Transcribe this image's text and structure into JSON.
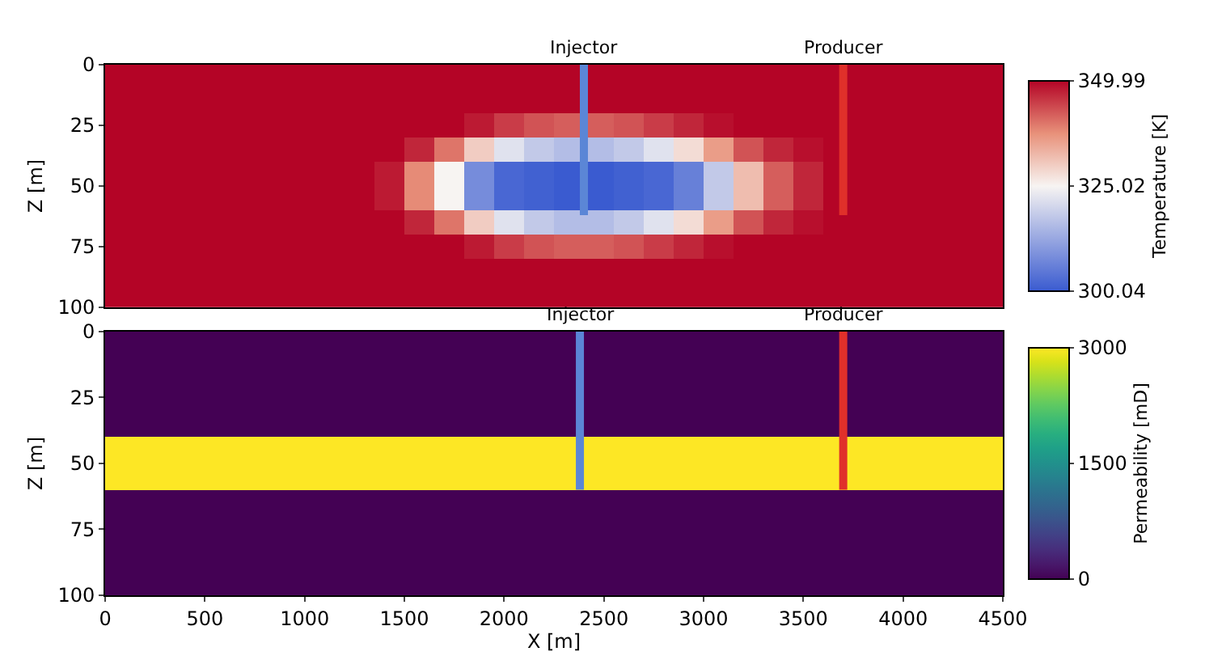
{
  "chart_data": [
    {
      "type": "heatmap",
      "ylabel": "Z [m]",
      "clabel": "Temperature [K]",
      "xlim": [
        0,
        4500
      ],
      "ylim": [
        100,
        0
      ],
      "yticks": [
        0,
        25,
        50,
        75,
        100
      ],
      "tick_labels": "y",
      "clim": [
        300.04,
        349.99
      ],
      "cticks": [
        300.04,
        325.02,
        349.99
      ],
      "x": [
        75,
        225,
        375,
        525,
        675,
        825,
        975,
        1125,
        1275,
        1425,
        1575,
        1725,
        1875,
        2025,
        2175,
        2325,
        2475,
        2625,
        2775,
        2925,
        3075,
        3225,
        3375,
        3525,
        3675,
        3825,
        3975,
        4125,
        4275,
        4425
      ],
      "y": [
        5,
        15,
        25,
        35,
        45,
        55,
        65,
        75,
        85,
        95
      ],
      "cells": [
        [
          349.99,
          349.99,
          349.99,
          349.99,
          349.99,
          349.99,
          349.99,
          349.99,
          349.99,
          349.99,
          349.99,
          349.99,
          349.99,
          349.99,
          349.99,
          349.99,
          349.99,
          349.99,
          349.99,
          349.99,
          349.99,
          349.99,
          349.99,
          349.99,
          349.99,
          349.99,
          349.99,
          349.99,
          349.99,
          349.99
        ],
        [
          349.99,
          349.99,
          349.99,
          349.99,
          349.99,
          349.99,
          349.99,
          349.99,
          349.99,
          349.99,
          349.99,
          349.99,
          349.99,
          349.99,
          349.99,
          349.99,
          349.99,
          349.99,
          349.99,
          349.99,
          349.99,
          349.99,
          349.99,
          349.99,
          349.99,
          349.99,
          349.99,
          349.99,
          349.99,
          349.99
        ],
        [
          349.99,
          349.99,
          349.99,
          349.99,
          349.99,
          349.99,
          349.99,
          349.99,
          349.99,
          349.99,
          349.99,
          349.99,
          348,
          345,
          343,
          342,
          342,
          343,
          345,
          347,
          349,
          349.99,
          349.99,
          349.99,
          349.99,
          349.99,
          349.99,
          349.99,
          349.99,
          349.99
        ],
        [
          349.99,
          349.99,
          349.99,
          349.99,
          349.99,
          349.99,
          349.99,
          349.99,
          349.99,
          349.99,
          347,
          340,
          330,
          322,
          318,
          316,
          316,
          318,
          322,
          328,
          336,
          343,
          347,
          349,
          349.99,
          349.99,
          349.99,
          349.99,
          349.99,
          349.99
        ],
        [
          349.99,
          349.99,
          349.99,
          349.99,
          349.99,
          349.99,
          349.99,
          349.99,
          349.99,
          348,
          338,
          325,
          308,
          302,
          301,
          300.04,
          300.04,
          301,
          302,
          306,
          318,
          332,
          342,
          347,
          349.99,
          349.99,
          349.99,
          349.99,
          349.99,
          349.99
        ],
        [
          349.99,
          349.99,
          349.99,
          349.99,
          349.99,
          349.99,
          349.99,
          349.99,
          349.99,
          348,
          338,
          325,
          308,
          302,
          301,
          300.04,
          300.04,
          301,
          302,
          306,
          318,
          332,
          342,
          347,
          349.99,
          349.99,
          349.99,
          349.99,
          349.99,
          349.99
        ],
        [
          349.99,
          349.99,
          349.99,
          349.99,
          349.99,
          349.99,
          349.99,
          349.99,
          349.99,
          349.99,
          347,
          340,
          330,
          322,
          318,
          316,
          316,
          318,
          322,
          328,
          336,
          343,
          347,
          349,
          349.99,
          349.99,
          349.99,
          349.99,
          349.99,
          349.99
        ],
        [
          349.99,
          349.99,
          349.99,
          349.99,
          349.99,
          349.99,
          349.99,
          349.99,
          349.99,
          349.99,
          349.99,
          349.99,
          348,
          345,
          343,
          342,
          342,
          343,
          345,
          347,
          349,
          349.99,
          349.99,
          349.99,
          349.99,
          349.99,
          349.99,
          349.99,
          349.99,
          349.99
        ],
        [
          349.99,
          349.99,
          349.99,
          349.99,
          349.99,
          349.99,
          349.99,
          349.99,
          349.99,
          349.99,
          349.99,
          349.99,
          349.99,
          349.99,
          349.99,
          349.99,
          349.99,
          349.99,
          349.99,
          349.99,
          349.99,
          349.99,
          349.99,
          349.99,
          349.99,
          349.99,
          349.99,
          349.99,
          349.99,
          349.99
        ],
        [
          349.99,
          349.99,
          349.99,
          349.99,
          349.99,
          349.99,
          349.99,
          349.99,
          349.99,
          349.99,
          349.99,
          349.99,
          349.99,
          349.99,
          349.99,
          349.99,
          349.99,
          349.99,
          349.99,
          349.99,
          349.99,
          349.99,
          349.99,
          349.99,
          349.99,
          349.99,
          349.99,
          349.99,
          349.99,
          349.99
        ]
      ],
      "series": [
        {
          "type": "line",
          "name": "Injector",
          "color": "#5b86d6",
          "x": [
            2400,
            2400
          ],
          "values": [
            0,
            62
          ]
        },
        {
          "type": "line",
          "name": "Producer",
          "color": "#e0302a",
          "x": [
            3700,
            3700
          ],
          "values": [
            0,
            62
          ]
        }
      ]
    },
    {
      "type": "heatmap",
      "xlabel": "X [m]",
      "ylabel": "Z [m]",
      "clabel": "Permeability [mD]",
      "xlim": [
        0,
        4500
      ],
      "xticks": [
        0,
        500,
        1000,
        1500,
        2000,
        2500,
        3000,
        3500,
        4000,
        4500
      ],
      "ylim": [
        100,
        0
      ],
      "yticks": [
        0,
        25,
        50,
        75,
        100
      ],
      "clim": [
        0,
        3000
      ],
      "cticks": [
        0,
        1500,
        3000
      ],
      "x": [
        225,
        675,
        1125,
        1575,
        2025,
        2475,
        2925,
        3375,
        3825,
        4275
      ],
      "y": [
        5,
        15,
        25,
        35,
        45,
        55,
        65,
        75,
        85,
        95
      ],
      "cells": [
        [
          0,
          0,
          0,
          0,
          0,
          0,
          0,
          0,
          0,
          0
        ],
        [
          0,
          0,
          0,
          0,
          0,
          0,
          0,
          0,
          0,
          0
        ],
        [
          0,
          0,
          0,
          0,
          0,
          0,
          0,
          0,
          0,
          0
        ],
        [
          0,
          0,
          0,
          0,
          0,
          0,
          0,
          0,
          0,
          0
        ],
        [
          3000,
          3000,
          3000,
          3000,
          3000,
          3000,
          3000,
          3000,
          3000,
          3000
        ],
        [
          3000,
          3000,
          3000,
          3000,
          3000,
          3000,
          3000,
          3000,
          3000,
          3000
        ],
        [
          0,
          0,
          0,
          0,
          0,
          0,
          0,
          0,
          0,
          0
        ],
        [
          0,
          0,
          0,
          0,
          0,
          0,
          0,
          0,
          0,
          0
        ],
        [
          0,
          0,
          0,
          0,
          0,
          0,
          0,
          0,
          0,
          0
        ],
        [
          0,
          0,
          0,
          0,
          0,
          0,
          0,
          0,
          0,
          0
        ]
      ],
      "series": [
        {
          "type": "line",
          "name": "Injector",
          "color": "#5b86d6",
          "x": [
            2380,
            2380
          ],
          "values": [
            0,
            60
          ]
        },
        {
          "type": "line",
          "name": "Producer",
          "color": "#e0302a",
          "x": [
            3700,
            3700
          ],
          "values": [
            0,
            60
          ]
        }
      ]
    }
  ]
}
